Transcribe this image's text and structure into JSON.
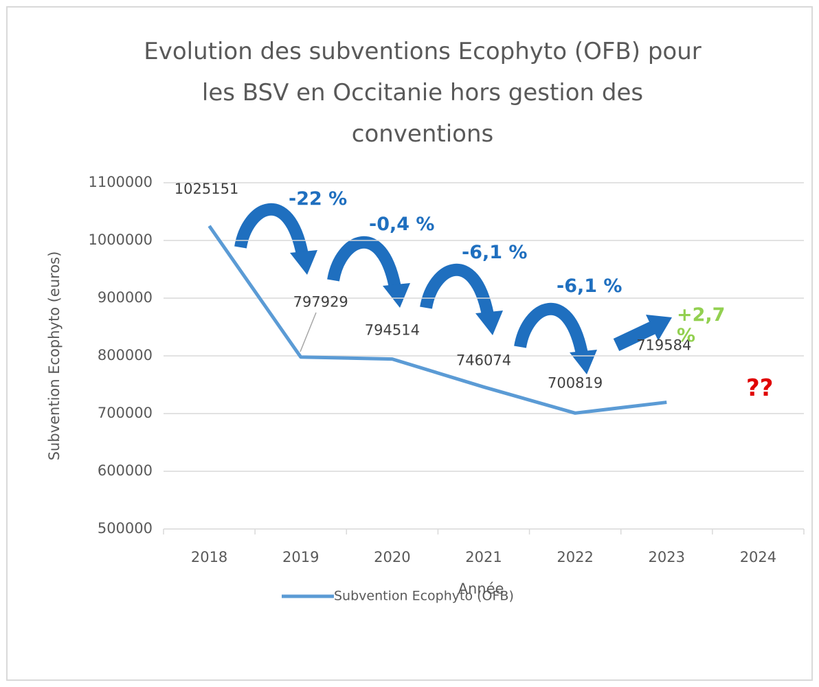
{
  "chart_data": {
    "type": "line",
    "title": "Evolution des subventions Ecophyto (OFB) pour les BSV en Occitanie hors gestion des conventions",
    "x_label": "Année",
    "y_label": "Subvention Ecophyto (euros)",
    "categories": [
      "2018",
      "2019",
      "2020",
      "2021",
      "2022",
      "2023",
      "2024"
    ],
    "series": [
      {
        "name": "Subvention Ecophyto (OFB)",
        "color": "#5b9bd5",
        "values": [
          1025151,
          797929,
          794514,
          746074,
          700819,
          719584,
          null
        ]
      }
    ],
    "ylim": [
      500000,
      1100000
    ],
    "yticks": [
      500000,
      600000,
      700000,
      800000,
      900000,
      1000000,
      1100000
    ],
    "grid": true,
    "legend": "bottom",
    "annotations": [
      {
        "text": "-22 %",
        "color": "#1f6fbf"
      },
      {
        "text": "-0,4 %",
        "color": "#1f6fbf"
      },
      {
        "text": "-6,1 %",
        "color": "#1f6fbf"
      },
      {
        "text": "-6,1 %",
        "color": "#1f6fbf"
      },
      {
        "text": "+2,7 %",
        "color": "#92d050"
      },
      {
        "text": "??",
        "color": "#e00000"
      }
    ]
  }
}
